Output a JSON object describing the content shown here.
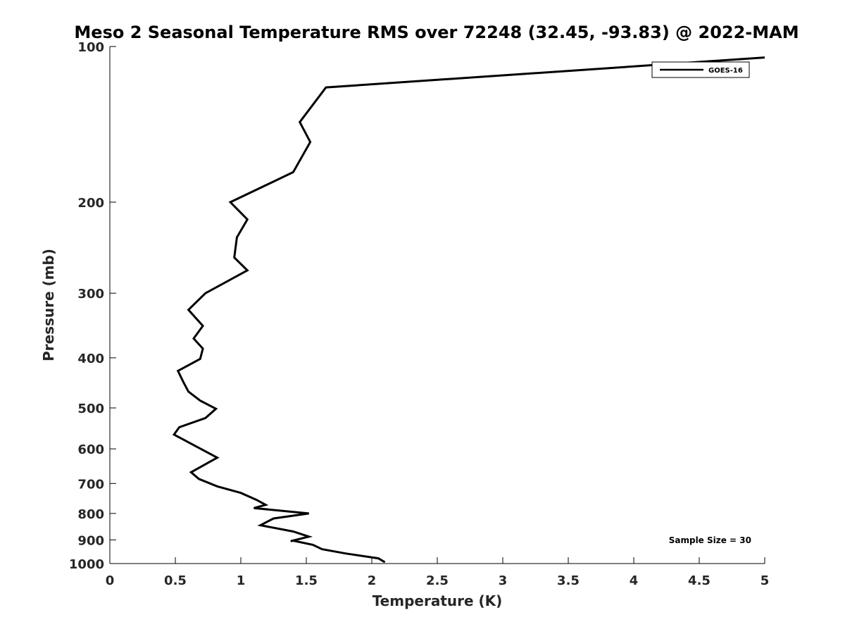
{
  "chart_data": {
    "type": "line",
    "title": "Meso 2 Seasonal Temperature RMS over 72248 (32.45, -93.83) @ 2022-MAM",
    "xlabel": "Temperature (K)",
    "ylabel": "Pressure (mb)",
    "xlim": [
      0,
      5
    ],
    "ylim": [
      100,
      1000
    ],
    "y_scale": "log",
    "y_reversed": true,
    "x_ticks": [
      "0",
      "0.5",
      "1",
      "1.5",
      "2",
      "2.5",
      "3",
      "3.5",
      "4",
      "4.5",
      "5"
    ],
    "y_ticks": [
      "100",
      "200",
      "300",
      "400",
      "500",
      "600",
      "700",
      "800",
      "900",
      "1000"
    ],
    "grid": false,
    "legend_position": "top-right",
    "annotation": "Sample Size = 30",
    "series": [
      {
        "name": "GOES-16",
        "color": "#000000",
        "points": [
          [
            5.0,
            105
          ],
          [
            1.65,
            120
          ],
          [
            1.45,
            140
          ],
          [
            1.53,
            153
          ],
          [
            1.4,
            175
          ],
          [
            0.92,
            200
          ],
          [
            1.05,
            216
          ],
          [
            0.97,
            234
          ],
          [
            0.95,
            256
          ],
          [
            1.05,
            271
          ],
          [
            0.73,
            300
          ],
          [
            0.6,
            323
          ],
          [
            0.71,
            347
          ],
          [
            0.64,
            367
          ],
          [
            0.71,
            384
          ],
          [
            0.69,
            402
          ],
          [
            0.52,
            424
          ],
          [
            0.56,
            445
          ],
          [
            0.6,
            465
          ],
          [
            0.69,
            484
          ],
          [
            0.81,
            502
          ],
          [
            0.73,
            523
          ],
          [
            0.53,
            545
          ],
          [
            0.49,
            563
          ],
          [
            0.64,
            590
          ],
          [
            0.82,
            624
          ],
          [
            0.62,
            666
          ],
          [
            0.68,
            686
          ],
          [
            0.82,
            709
          ],
          [
            1.0,
            730
          ],
          [
            1.12,
            753
          ],
          [
            1.19,
            770
          ],
          [
            1.1,
            781
          ],
          [
            1.52,
            800
          ],
          [
            1.25,
            818
          ],
          [
            1.15,
            843
          ],
          [
            1.4,
            867
          ],
          [
            1.52,
            887
          ],
          [
            1.38,
            905
          ],
          [
            1.4,
            903
          ],
          [
            1.55,
            920
          ],
          [
            1.62,
            938
          ],
          [
            1.8,
            956
          ],
          [
            2.05,
            977
          ],
          [
            2.1,
            994
          ]
        ]
      }
    ]
  }
}
